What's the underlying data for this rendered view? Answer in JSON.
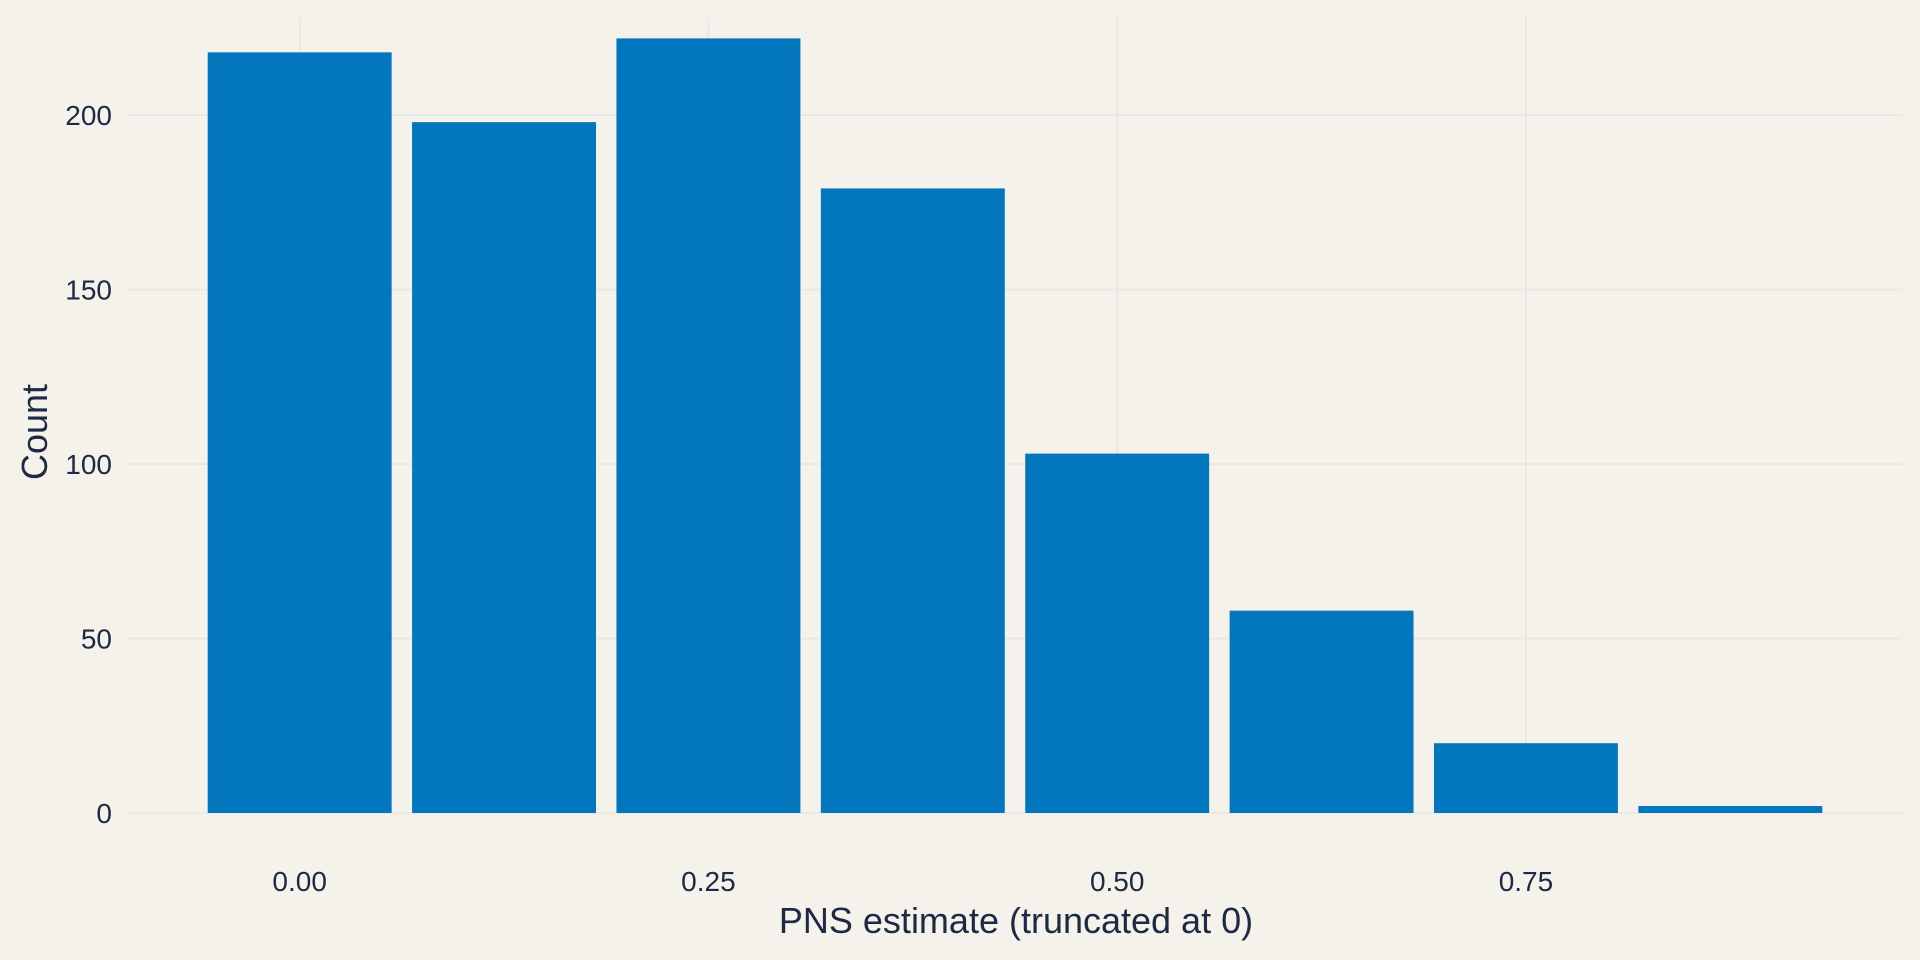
{
  "chart_data": {
    "type": "bar",
    "title": "",
    "xlabel": "PNS estimate (truncated at 0)",
    "ylabel": "Count",
    "bin_width": 0.125,
    "bins": [
      {
        "center": 0.0,
        "count": 218
      },
      {
        "center": 0.125,
        "count": 198
      },
      {
        "center": 0.25,
        "count": 222
      },
      {
        "center": 0.375,
        "count": 179
      },
      {
        "center": 0.5,
        "count": 103
      },
      {
        "center": 0.625,
        "count": 58
      },
      {
        "center": 0.75,
        "count": 20
      },
      {
        "center": 0.875,
        "count": 2
      }
    ],
    "xlim": [
      -0.105,
      0.98
    ],
    "ylim": [
      0,
      233
    ],
    "x_ticks": [
      0.0,
      0.25,
      0.5,
      0.75
    ],
    "x_tick_labels": [
      "0.00",
      "0.25",
      "0.50",
      "0.75"
    ],
    "y_ticks": [
      0,
      50,
      100,
      150,
      200
    ],
    "y_tick_labels": [
      "0",
      "50",
      "100",
      "150",
      "200"
    ],
    "grid": true,
    "legend": "none",
    "colors": {
      "bar": "#0277bd",
      "background": "#f5f2eb",
      "grid": "#e8e6e2",
      "text": "#1c2a44"
    }
  }
}
